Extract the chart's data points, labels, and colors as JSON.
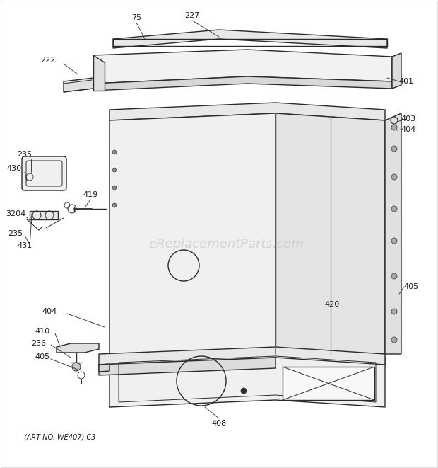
{
  "bg_color": "#ffffff",
  "line_color": "#2a2a2a",
  "label_color": "#1a1a1a",
  "watermark": "eReplacementParts.com",
  "watermark_color": "#cccccc",
  "art_no": "(ART NO. WE407) C3",
  "figsize": [
    6.2,
    6.61
  ],
  "dpi": 100
}
